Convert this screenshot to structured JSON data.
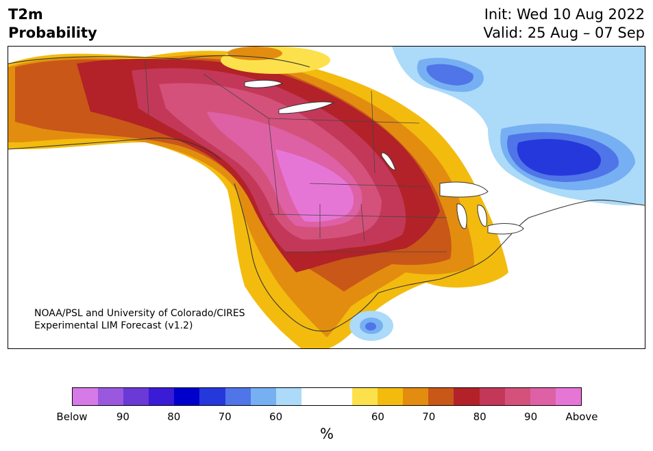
{
  "header": {
    "title": "T2m\nProbability",
    "init_line": "Init: Wed 10 Aug 2022",
    "valid_line": "Valid: 25 Aug – 07 Sep",
    "dates": "Init: Wed 10 Aug 2022\nValid: 25 Aug – 07 Sep"
  },
  "map": {
    "credit": "NOAA/PSL and University of Colorado/CIRES\nExperimental LIM Forecast (v1.2)"
  },
  "colorbar": {
    "colors": [
      "#d67ae8",
      "#9a58df",
      "#6a39d6",
      "#3b1cd6",
      "#0000cc",
      "#2538dc",
      "#4f75e8",
      "#76b0f2",
      "#acdaf9",
      "#ffffff",
      "#ffffff",
      "#fde14c",
      "#f3bb0e",
      "#e28d10",
      "#c95718",
      "#b22228",
      "#c33858",
      "#d4517c",
      "#de61a6",
      "#e676d6"
    ],
    "tick_labels": [
      "Below",
      "90",
      "80",
      "70",
      "60",
      "60",
      "70",
      "80",
      "90",
      "Above"
    ],
    "unit": "%"
  }
}
